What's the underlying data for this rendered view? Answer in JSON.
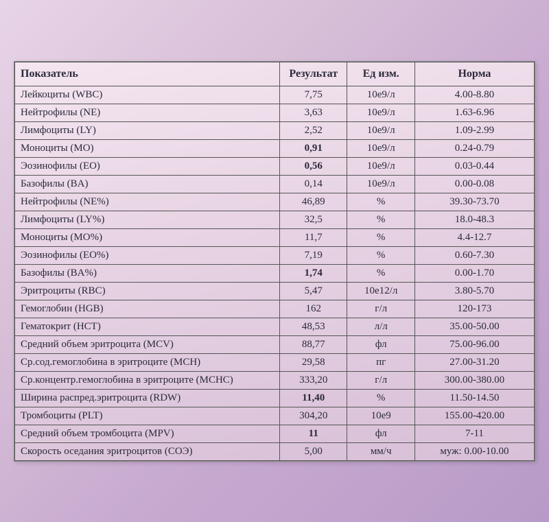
{
  "table": {
    "headers": {
      "name": "Показатель",
      "result": "Результат",
      "unit": "Ед изм.",
      "norm": "Норма"
    },
    "rows": [
      {
        "name": "Лейкоциты (WBC)",
        "result": "7,75",
        "unit": "10e9/л",
        "norm": "4.00-8.80",
        "bold": false
      },
      {
        "name": "Нейтрофилы (NE)",
        "result": "3,63",
        "unit": "10e9/л",
        "norm": "1.63-6.96",
        "bold": false
      },
      {
        "name": "Лимфоциты (LY)",
        "result": "2,52",
        "unit": "10e9/л",
        "norm": "1.09-2.99",
        "bold": false
      },
      {
        "name": "Моноциты (MO)",
        "result": "0,91",
        "unit": "10e9/л",
        "norm": "0.24-0.79",
        "bold": true
      },
      {
        "name": "Эозинофилы (EO)",
        "result": "0,56",
        "unit": "10e9/л",
        "norm": "0.03-0.44",
        "bold": true
      },
      {
        "name": "Базофилы (BA)",
        "result": "0,14",
        "unit": "10e9/л",
        "norm": "0.00-0.08",
        "bold": false
      },
      {
        "name": "Нейтрофилы (NE%)",
        "result": "46,89",
        "unit": "%",
        "norm": "39.30-73.70",
        "bold": false
      },
      {
        "name": "Лимфоциты (LY%)",
        "result": "32,5",
        "unit": "%",
        "norm": "18.0-48.3",
        "bold": false
      },
      {
        "name": "Моноциты (MO%)",
        "result": "11,7",
        "unit": "%",
        "norm": "4.4-12.7",
        "bold": false
      },
      {
        "name": "Эозинофилы (EO%)",
        "result": "7,19",
        "unit": "%",
        "norm": "0.60-7.30",
        "bold": false
      },
      {
        "name": "Базофилы (BA%)",
        "result": "1,74",
        "unit": "%",
        "norm": "0.00-1.70",
        "bold": true
      },
      {
        "name": "Эритроциты (RBC)",
        "result": "5,47",
        "unit": "10e12/л",
        "norm": "3.80-5.70",
        "bold": false
      },
      {
        "name": "Гемоглобин (HGB)",
        "result": "162",
        "unit": "г/л",
        "norm": "120-173",
        "bold": false
      },
      {
        "name": "Гематокрит (HCT)",
        "result": "48,53",
        "unit": "л/л",
        "norm": "35.00-50.00",
        "bold": false
      },
      {
        "name": "Средний объем эритроцита (MCV)",
        "result": "88,77",
        "unit": "фл",
        "norm": "75.00-96.00",
        "bold": false
      },
      {
        "name": "Ср.сод.гемоглобина в эритроците (MCH)",
        "result": "29,58",
        "unit": "пг",
        "norm": "27.00-31.20",
        "bold": false
      },
      {
        "name": "Ср.концентр.гемоглобина в эритроците (MCHC)",
        "result": "333,20",
        "unit": "г/л",
        "norm": "300.00-380.00",
        "bold": false
      },
      {
        "name": "Ширина распред.эритроцита (RDW)",
        "result": "11,40",
        "unit": "%",
        "norm": "11.50-14.50",
        "bold": true
      },
      {
        "name": "Тромбоциты (PLT)",
        "result": "304,20",
        "unit": "10e9",
        "norm": "155.00-420.00",
        "bold": false
      },
      {
        "name": "Средний объем тромбоцита (MPV)",
        "result": "11",
        "unit": "фл",
        "norm": "7-11",
        "bold": true
      },
      {
        "name": "Скорость оседания эритроцитов (СОЭ)",
        "result": "5,00",
        "unit": "мм/ч",
        "norm": "муж: 0.00-10.00",
        "bold": false
      }
    ],
    "style": {
      "border_color": "#555555",
      "text_color": "#2a2a3a",
      "background_gradient_from": "#f4e6f0",
      "background_gradient_to": "#d8c0d8",
      "font_family": "Times New Roman",
      "header_fontsize_pt": 16,
      "cell_fontsize_pt": 15,
      "column_widths_pct": {
        "name": 51,
        "result": 13,
        "unit": 13,
        "norm": 23
      },
      "alignment": {
        "name": "left",
        "result": "center",
        "unit": "center",
        "norm": "center"
      }
    }
  }
}
